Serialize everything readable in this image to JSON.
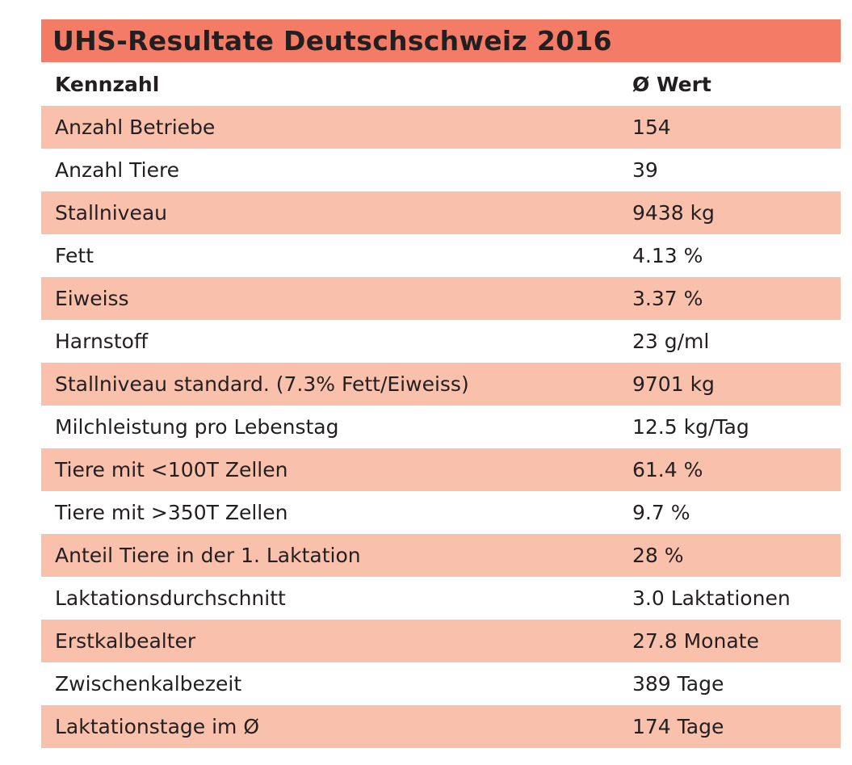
{
  "title": "UHS-Resultate Deutschschweiz 2016",
  "colors": {
    "title_bar": "#f47c67",
    "shaded_row": "#f9c0ac",
    "plain_row": "#ffffff",
    "text": "#231f20"
  },
  "header": {
    "label": "Kennzahl",
    "value": "Ø Wert"
  },
  "rows": [
    {
      "label": "Anzahl Betriebe",
      "value": "154"
    },
    {
      "label": "Anzahl Tiere",
      "value": "39"
    },
    {
      "label": "Stallniveau",
      "value": "9438 kg"
    },
    {
      "label": "Fett",
      "value": "4.13 %"
    },
    {
      "label": "Eiweiss",
      "value": "3.37 %"
    },
    {
      "label": "Harnstoff",
      "value": "23 g/ml"
    },
    {
      "label": "Stallniveau standard. (7.3% Fett/Eiweiss)",
      "value": "9701 kg"
    },
    {
      "label": "Milchleistung pro Lebenstag",
      "value": "12.5 kg/Tag"
    },
    {
      "label": "Tiere mit <100T Zellen",
      "value": "61.4 %"
    },
    {
      "label": "Tiere mit >350T Zellen",
      "value": "9.7 %"
    },
    {
      "label": "Anteil Tiere in der 1. Laktation",
      "value": "28 %"
    },
    {
      "label": "Laktationsdurchschnitt",
      "value": "3.0 Laktationen"
    },
    {
      "label": "Erstkalbealter",
      "value": "27.8 Monate"
    },
    {
      "label": "Zwischenkalbezeit",
      "value": "389 Tage"
    },
    {
      "label": "Laktationstage im Ø",
      "value": "174 Tage"
    }
  ]
}
